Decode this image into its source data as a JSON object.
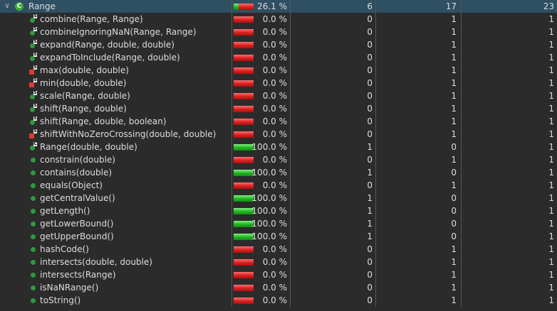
{
  "class_row": {
    "name": "Range",
    "icon": "class-icon",
    "icon_letter": "C",
    "coverage_pct": "26.1 %",
    "coverage_fraction": 0.261,
    "covered": "6",
    "missed": "17",
    "total": "23"
  },
  "methods": [
    {
      "name": "combine(Range, Range)",
      "coverage_pct": "0.0 %",
      "coverage_fraction": 0.0,
      "covered": "0",
      "missed": "1",
      "total": "1",
      "icon": "static-method-icon"
    },
    {
      "name": "combineIgnoringNaN(Range, Range)",
      "coverage_pct": "0.0 %",
      "coverage_fraction": 0.0,
      "covered": "0",
      "missed": "1",
      "total": "1",
      "icon": "static-method-icon"
    },
    {
      "name": "expand(Range, double, double)",
      "coverage_pct": "0.0 %",
      "coverage_fraction": 0.0,
      "covered": "0",
      "missed": "1",
      "total": "1",
      "icon": "static-method-icon"
    },
    {
      "name": "expandToInclude(Range, double)",
      "coverage_pct": "0.0 %",
      "coverage_fraction": 0.0,
      "covered": "0",
      "missed": "1",
      "total": "1",
      "icon": "static-method-icon"
    },
    {
      "name": "max(double, double)",
      "coverage_pct": "0.0 %",
      "coverage_fraction": 0.0,
      "covered": "0",
      "missed": "1",
      "total": "1",
      "icon": "private-static-method-icon"
    },
    {
      "name": "min(double, double)",
      "coverage_pct": "0.0 %",
      "coverage_fraction": 0.0,
      "covered": "0",
      "missed": "1",
      "total": "1",
      "icon": "private-static-method-icon"
    },
    {
      "name": "scale(Range, double)",
      "coverage_pct": "0.0 %",
      "coverage_fraction": 0.0,
      "covered": "0",
      "missed": "1",
      "total": "1",
      "icon": "static-method-icon"
    },
    {
      "name": "shift(Range, double)",
      "coverage_pct": "0.0 %",
      "coverage_fraction": 0.0,
      "covered": "0",
      "missed": "1",
      "total": "1",
      "icon": "static-method-icon"
    },
    {
      "name": "shift(Range, double, boolean)",
      "coverage_pct": "0.0 %",
      "coverage_fraction": 0.0,
      "covered": "0",
      "missed": "1",
      "total": "1",
      "icon": "static-method-icon"
    },
    {
      "name": "shiftWithNoZeroCrossing(double, double)",
      "coverage_pct": "0.0 %",
      "coverage_fraction": 0.0,
      "covered": "0",
      "missed": "1",
      "total": "1",
      "icon": "private-static-method-icon"
    },
    {
      "name": "Range(double, double)",
      "coverage_pct": "100.0 %",
      "coverage_fraction": 1.0,
      "covered": "1",
      "missed": "0",
      "total": "1",
      "icon": "constructor-icon"
    },
    {
      "name": "constrain(double)",
      "coverage_pct": "0.0 %",
      "coverage_fraction": 0.0,
      "covered": "0",
      "missed": "1",
      "total": "1",
      "icon": "public-method-icon"
    },
    {
      "name": "contains(double)",
      "coverage_pct": "100.0 %",
      "coverage_fraction": 1.0,
      "covered": "1",
      "missed": "0",
      "total": "1",
      "icon": "public-method-icon"
    },
    {
      "name": "equals(Object)",
      "coverage_pct": "0.0 %",
      "coverage_fraction": 0.0,
      "covered": "0",
      "missed": "1",
      "total": "1",
      "icon": "public-method-icon"
    },
    {
      "name": "getCentralValue()",
      "coverage_pct": "100.0 %",
      "coverage_fraction": 1.0,
      "covered": "1",
      "missed": "0",
      "total": "1",
      "icon": "public-method-icon"
    },
    {
      "name": "getLength()",
      "coverage_pct": "100.0 %",
      "coverage_fraction": 1.0,
      "covered": "1",
      "missed": "0",
      "total": "1",
      "icon": "public-method-icon"
    },
    {
      "name": "getLowerBound()",
      "coverage_pct": "100.0 %",
      "coverage_fraction": 1.0,
      "covered": "1",
      "missed": "0",
      "total": "1",
      "icon": "public-method-icon"
    },
    {
      "name": "getUpperBound()",
      "coverage_pct": "100.0 %",
      "coverage_fraction": 1.0,
      "covered": "1",
      "missed": "0",
      "total": "1",
      "icon": "public-method-icon"
    },
    {
      "name": "hashCode()",
      "coverage_pct": "0.0 %",
      "coverage_fraction": 0.0,
      "covered": "0",
      "missed": "1",
      "total": "1",
      "icon": "public-method-icon"
    },
    {
      "name": "intersects(double, double)",
      "coverage_pct": "0.0 %",
      "coverage_fraction": 0.0,
      "covered": "0",
      "missed": "1",
      "total": "1",
      "icon": "public-method-icon"
    },
    {
      "name": "intersects(Range)",
      "coverage_pct": "0.0 %",
      "coverage_fraction": 0.0,
      "covered": "0",
      "missed": "1",
      "total": "1",
      "icon": "public-method-icon"
    },
    {
      "name": "isNaNRange()",
      "coverage_pct": "0.0 %",
      "coverage_fraction": 0.0,
      "covered": "0",
      "missed": "1",
      "total": "1",
      "icon": "public-method-icon"
    },
    {
      "name": "toString()",
      "coverage_pct": "0.0 %",
      "coverage_fraction": 0.0,
      "covered": "0",
      "missed": "1",
      "total": "1",
      "icon": "public-method-icon"
    }
  ],
  "colors": {
    "background": "#2b2b2b",
    "selected_row": "#2f4f63",
    "covered": "#22b322",
    "missed": "#d82020",
    "public_method": "#2f9a3a",
    "private_method": "#d83a3a"
  }
}
